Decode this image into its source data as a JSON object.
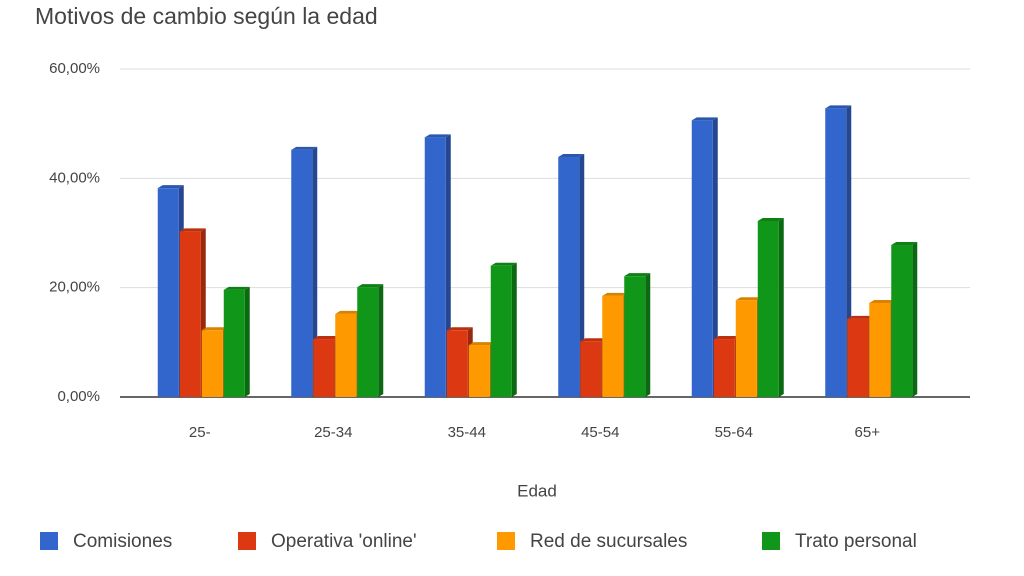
{
  "chart_data": {
    "type": "bar",
    "title": "Motivos de cambio según la edad",
    "x_label": "Edad",
    "categories": [
      "25-",
      "25-34",
      "35-44",
      "45-54",
      "55-64",
      "65+"
    ],
    "series": [
      {
        "name": "Comisiones",
        "color": "#3366cc",
        "values": [
          38.2,
          45.2,
          47.5,
          43.9,
          50.6,
          52.8
        ]
      },
      {
        "name": "Operativa 'online'",
        "color": "#dc3912",
        "values": [
          30.3,
          10.6,
          12.2,
          10.2,
          10.6,
          14.3
        ]
      },
      {
        "name": "Red de sucursales",
        "color": "#ff9900",
        "values": [
          12.2,
          15.2,
          9.5,
          18.5,
          17.7,
          17.2
        ]
      },
      {
        "name": "Trato personal",
        "color": "#109618",
        "values": [
          19.6,
          20.1,
          24,
          22.1,
          32.2,
          27.8
        ]
      }
    ],
    "ylim": [
      0,
      60
    ],
    "yticks": [
      {
        "value": 0,
        "label": "0,00%"
      },
      {
        "value": 20,
        "label": "20,00%"
      },
      {
        "value": 40,
        "label": "40,00%"
      },
      {
        "value": 60,
        "label": "60,00%"
      }
    ],
    "grid": true,
    "legend": "bottom"
  }
}
